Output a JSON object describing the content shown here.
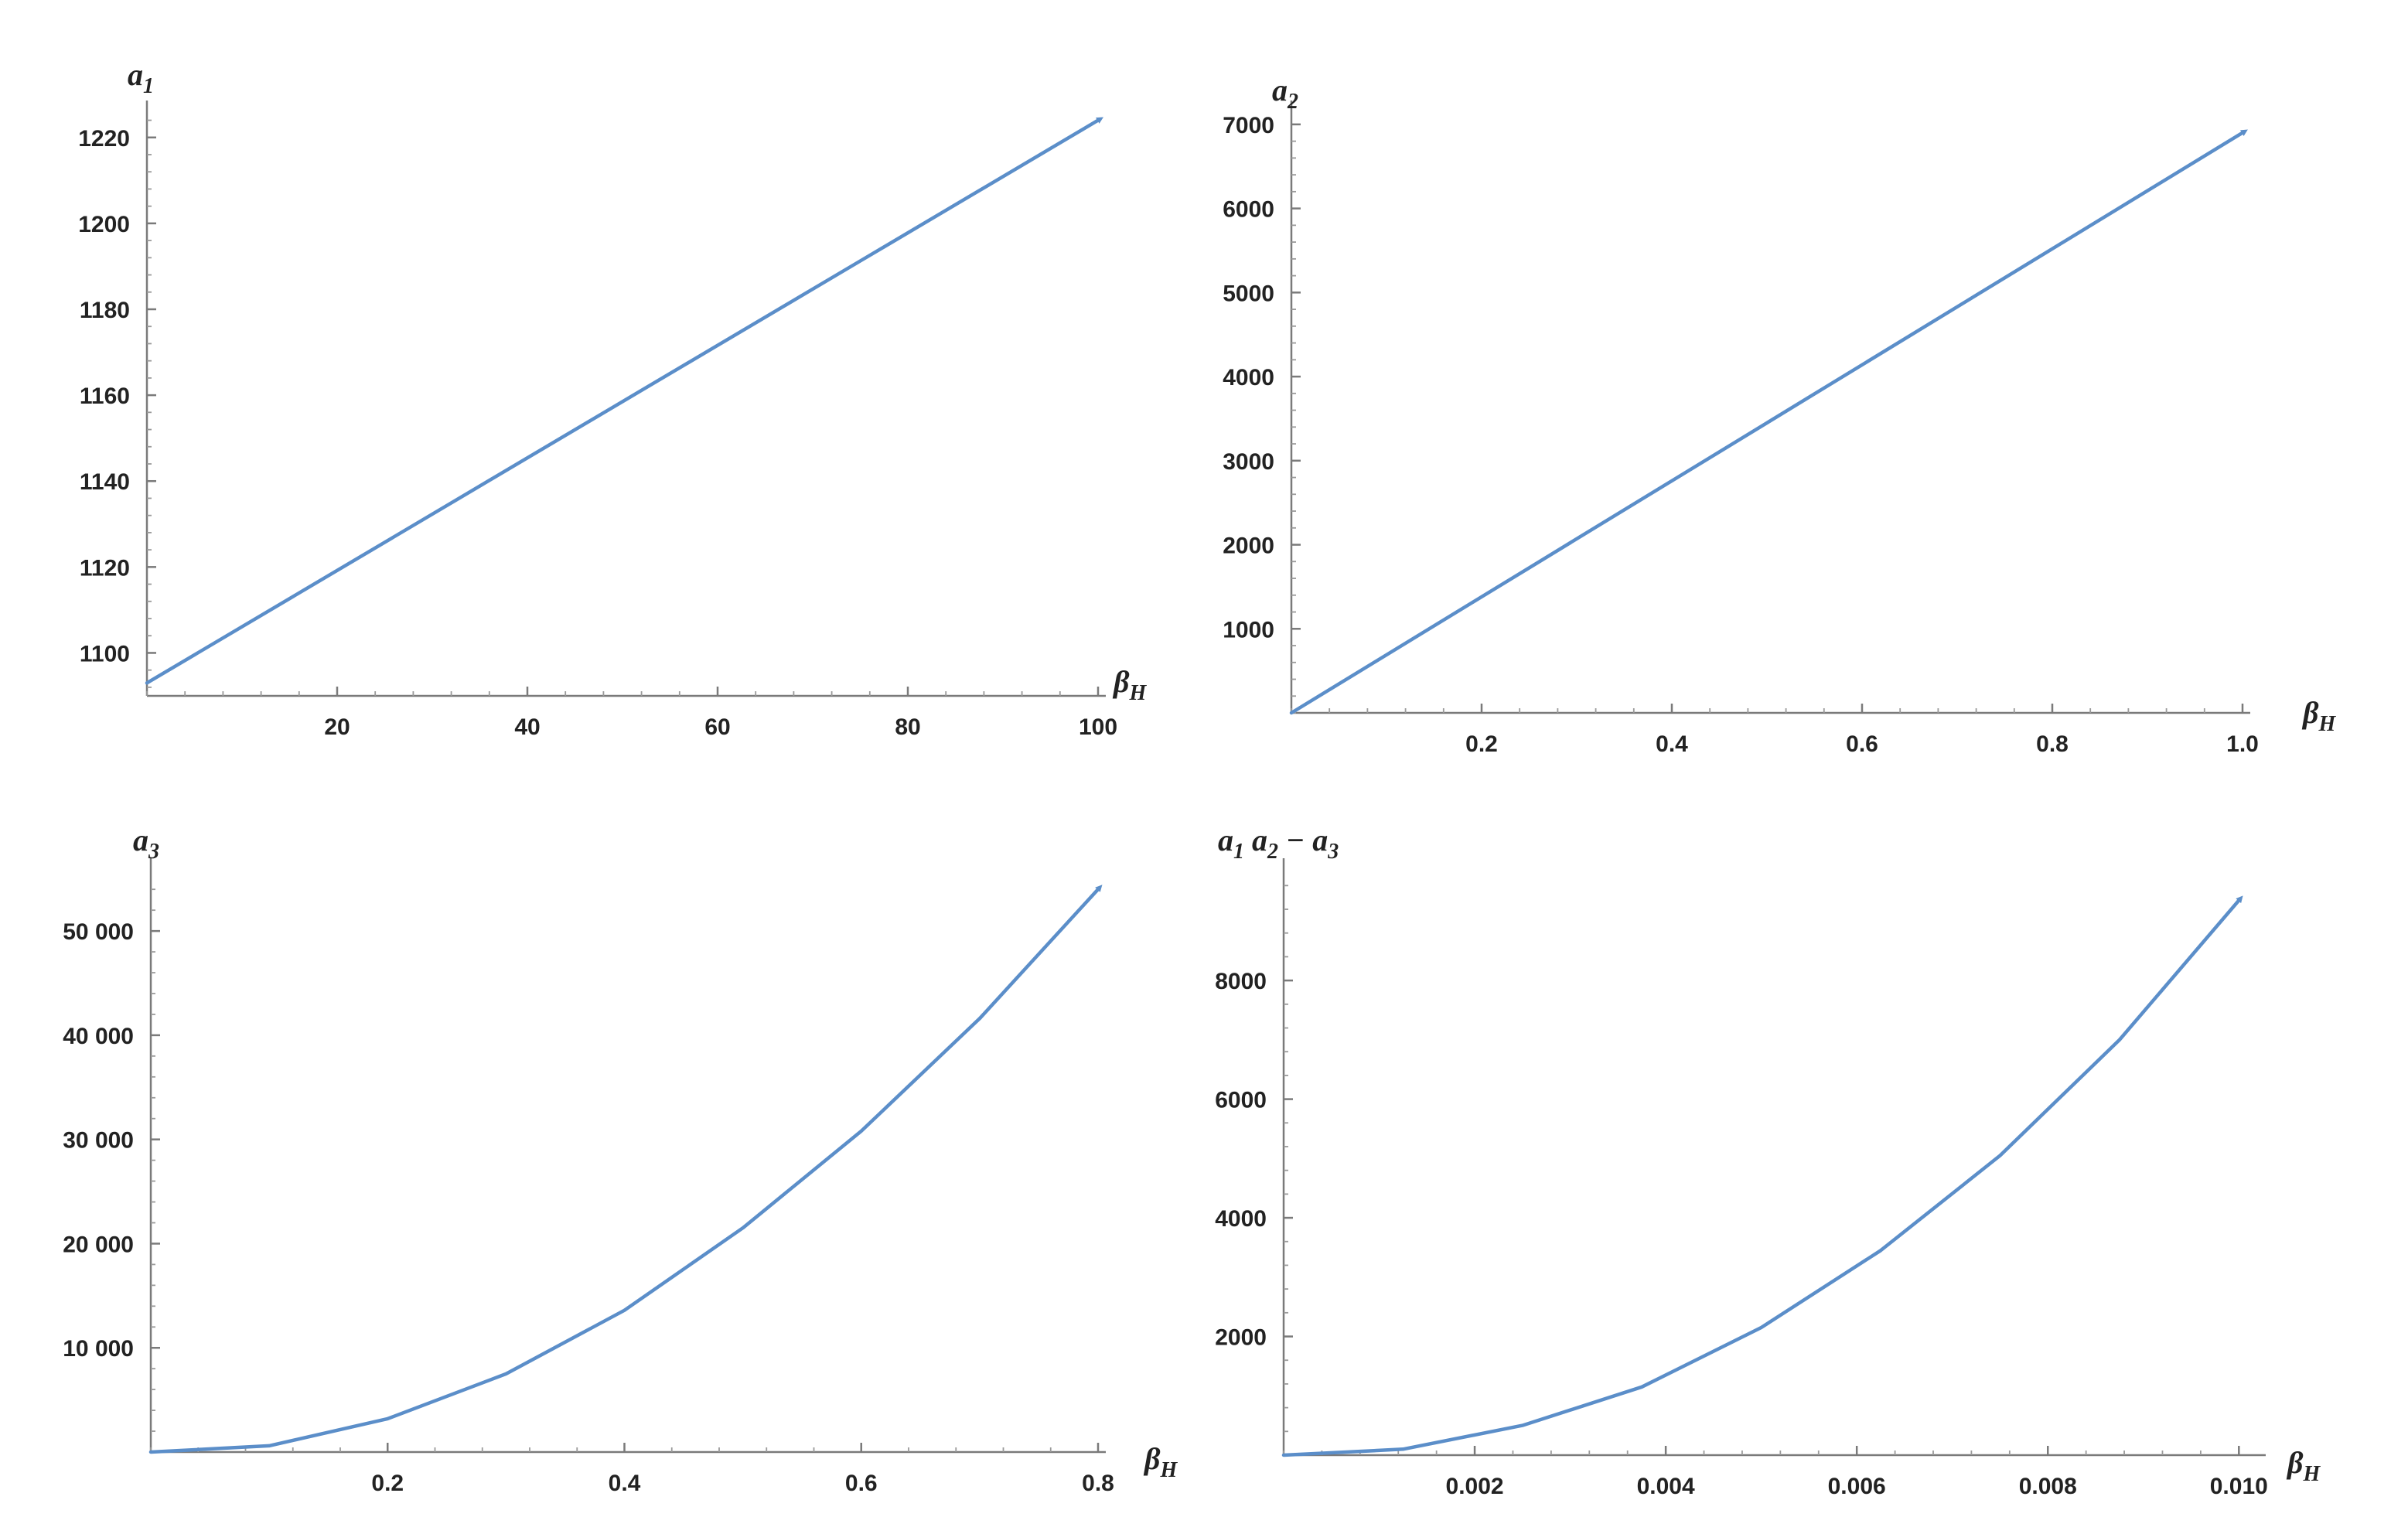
{
  "chart_data": [
    {
      "type": "line",
      "ylabel": {
        "base": "a",
        "sub": "1",
        "suffix": ""
      },
      "xlabel": {
        "base": "β",
        "sub": "H"
      },
      "xlim": [
        0,
        100
      ],
      "ylim": [
        1090,
        1225
      ],
      "xticks": [
        20,
        40,
        60,
        80,
        100
      ],
      "xtick_labels": [
        "20",
        "40",
        "60",
        "80",
        "100"
      ],
      "yticks": [
        1100,
        1120,
        1140,
        1160,
        1180,
        1200,
        1220
      ],
      "ytick_labels": [
        "1100",
        "1120",
        "1140",
        "1160",
        "1180",
        "1200",
        "1220"
      ],
      "series": [
        {
          "x": [
            0,
            25,
            50,
            75,
            100
          ],
          "y": [
            1093,
            1125.75,
            1158.5,
            1191.25,
            1224
          ]
        }
      ],
      "arrow_at_end": true,
      "color": "#5b8ec9"
    },
    {
      "type": "line",
      "ylabel": {
        "base": "a",
        "sub": "2",
        "suffix": ""
      },
      "xlabel": {
        "base": "β",
        "sub": "H"
      },
      "xlim": [
        0,
        1.0
      ],
      "ylim": [
        0,
        7100
      ],
      "xticks": [
        0.2,
        0.4,
        0.6,
        0.8,
        1.0
      ],
      "xtick_labels": [
        "0.2",
        "0.4",
        "0.6",
        "0.8",
        "1.0"
      ],
      "yticks": [
        1000,
        2000,
        3000,
        4000,
        5000,
        6000,
        7000
      ],
      "ytick_labels": [
        "1000",
        "2000",
        "3000",
        "4000",
        "5000",
        "6000",
        "7000"
      ],
      "series": [
        {
          "x": [
            0,
            0.25,
            0.5,
            0.75,
            1.0
          ],
          "y": [
            0,
            1725,
            3450,
            5175,
            6900
          ]
        }
      ],
      "arrow_at_end": true,
      "color": "#5b8ec9"
    },
    {
      "type": "line",
      "ylabel": {
        "base": "a",
        "sub": "3",
        "suffix": ""
      },
      "xlabel": {
        "base": "β",
        "sub": "H"
      },
      "xlim": [
        0,
        0.8
      ],
      "ylim": [
        0,
        55500
      ],
      "xticks": [
        0.2,
        0.4,
        0.6,
        0.8
      ],
      "xtick_labels": [
        "0.2",
        "0.4",
        "0.6",
        "0.8"
      ],
      "yticks": [
        10000,
        20000,
        30000,
        40000,
        50000
      ],
      "ytick_labels": [
        "10 000",
        "20 000",
        "30 000",
        "40 000",
        "50 000"
      ],
      "series": [
        {
          "x": [
            0,
            0.1,
            0.2,
            0.3,
            0.4,
            0.5,
            0.6,
            0.7,
            0.8
          ],
          "y": [
            0,
            600,
            3200,
            7500,
            13600,
            21500,
            30800,
            41600,
            54000
          ]
        }
      ],
      "arrow_at_end": true,
      "color": "#5b8ec9"
    },
    {
      "type": "line",
      "ylabel": {
        "base": "a",
        "sub": "1",
        "suffix": " a",
        "sub2": "2",
        "suffix2": " − a",
        "sub3": "3"
      },
      "xlabel": {
        "base": "β",
        "sub": "H"
      },
      "xlim": [
        0,
        0.0102
      ],
      "ylim": [
        0,
        9800
      ],
      "xticks": [
        0.002,
        0.004,
        0.006,
        0.008,
        0.01
      ],
      "xtick_labels": [
        "0.002",
        "0.004",
        "0.006",
        "0.008",
        "0.010"
      ],
      "yticks": [
        2000,
        4000,
        6000,
        8000
      ],
      "ytick_labels": [
        "2000",
        "4000",
        "6000",
        "8000"
      ],
      "series": [
        {
          "x": [
            0,
            0.00125,
            0.0025,
            0.00375,
            0.005,
            0.00625,
            0.0075,
            0.00875,
            0.01
          ],
          "y": [
            0,
            100,
            500,
            1150,
            2150,
            3450,
            5050,
            7000,
            9350
          ]
        }
      ],
      "arrow_at_end": true,
      "color": "#5b8ec9"
    }
  ]
}
